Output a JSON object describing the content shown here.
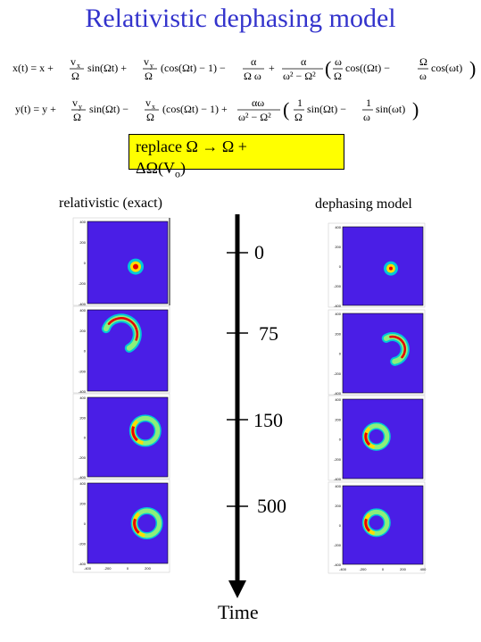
{
  "title": "Relativistic dephasing model",
  "equations": {
    "x_lhs": "x(t) = x +",
    "x_t1_num": "v",
    "x_t1_den": "Ω",
    "x_t1_rest": "sin(Ωt) +",
    "x_t2_num": "v",
    "x_t2_den": "Ω",
    "x_t2_rest": "(cos(Ωt) − 1) −",
    "x_t3_num": "α",
    "x_t3_den": "Ω ω",
    "x_t3_rest": "+",
    "x_t4_num": "α",
    "x_t4_den": "ω² − Ω²",
    "x_t4_rest": "cos((Ωt) −",
    "x_t4_inner_num1": "ω",
    "x_t4_inner_den1": "Ω",
    "x_t4_inner_num2": "Ω",
    "x_t4_inner_den2": "ω",
    "x_t4_end": "cos(ωt)",
    "y_lhs": "y(t) = y +",
    "y_t1_num": "v",
    "y_t1_den": "Ω",
    "y_t1_rest": "sin(Ωt) −",
    "y_t2_num": "v",
    "y_t2_den": "Ω",
    "y_t2_rest": "(cos(Ωt) − 1) +",
    "y_t3_num": "αω",
    "y_t3_den": "ω² − Ω²",
    "y_t4_num1": "1",
    "y_t4_den1": "Ω",
    "y_t4_mid": "sin(Ωt) −",
    "y_t4_num2": "1",
    "y_t4_den2": "ω",
    "y_t4_end": "sin(ωt)",
    "sub_x": "x",
    "sub_y": "y"
  },
  "replace": {
    "line1": "replace Ω  →    Ω  +",
    "line2": "ΔΩ(V",
    "line2_sub": "o",
    "line2_end": ")"
  },
  "left_title": "relativistic (exact)",
  "right_title": "dephasing model",
  "time_labels": [
    "0",
    "75",
    "150",
    "500"
  ],
  "time_axis_label": "Time",
  "colors": {
    "title": "#3333cc",
    "panel_bg": "#4a1ee6",
    "ring_outer": "#00c8d8",
    "ring_mid": "#8cf07a",
    "ring_hot": "#ffdd00",
    "ring_core": "#e80000"
  },
  "left_panels": [
    {
      "ticks_y": [
        "400",
        "200",
        "0",
        "-200",
        "-400"
      ],
      "ticks_x": []
    },
    {
      "ticks_y": [
        "400",
        "200",
        "0",
        "-200",
        "-400"
      ],
      "ticks_x": []
    },
    {
      "ticks_y": [
        "400",
        "200",
        "0",
        "-200",
        "-400"
      ],
      "ticks_x": []
    },
    {
      "ticks_y": [
        "400",
        "200",
        "0",
        "-200",
        "-400"
      ],
      "ticks_x": [
        "-400",
        "-200",
        "0",
        "200"
      ]
    }
  ],
  "right_panels": [
    {
      "ticks_y": [
        "400",
        "200",
        "0",
        "-200",
        "-400"
      ],
      "ticks_x": []
    },
    {
      "ticks_y": [
        "400",
        "200",
        "0",
        "-200",
        "-400"
      ],
      "ticks_x": []
    },
    {
      "ticks_y": [
        "400",
        "200",
        "0",
        "-200",
        "-400"
      ],
      "ticks_x": []
    },
    {
      "ticks_y": [
        "400",
        "200",
        "0",
        "-200",
        "-400"
      ],
      "ticks_x": [
        "-400",
        "-200",
        "0",
        "200",
        "400"
      ]
    }
  ]
}
